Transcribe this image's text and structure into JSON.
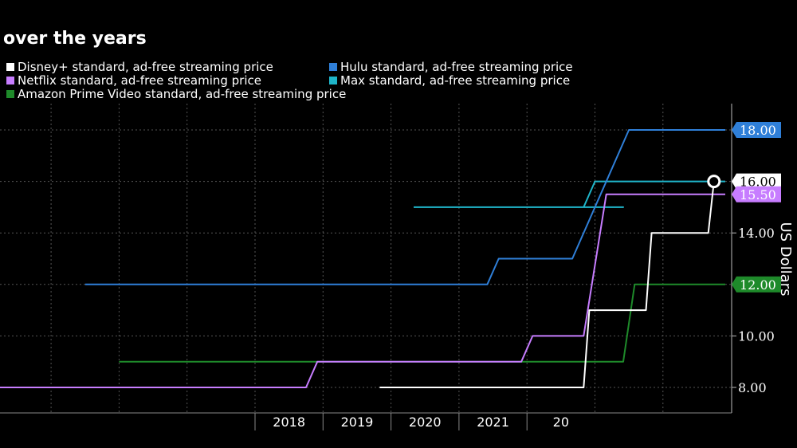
{
  "title": "over the years",
  "chart_data": {
    "type": "line",
    "ylabel": "US Dollars",
    "ylim": [
      7,
      19
    ],
    "y_ticks": [
      8,
      10,
      12,
      14,
      16,
      18
    ],
    "x_ticks": [
      "2018",
      "2019",
      "2020",
      "2021",
      "20"
    ],
    "grid": true,
    "legend_position": "top",
    "series": [
      {
        "name": "Disney+ standard, ad-free streaming price",
        "color": "#ffffff",
        "points": [
          [
            "2019-11",
            8.0
          ],
          [
            "2022-11",
            8.0
          ],
          [
            "2022-12",
            11.0
          ],
          [
            "2023-10",
            11.0
          ],
          [
            "2023-11",
            14.0
          ],
          [
            "2024-09",
            14.0
          ],
          [
            "2024-10",
            16.0
          ]
        ],
        "end_label": "16.00"
      },
      {
        "name": "Hulu standard, ad-free streaming price",
        "color": "#2f7fd8",
        "points": [
          [
            "2015-07",
            12.0
          ],
          [
            "2021-06",
            12.0
          ],
          [
            "2021-08",
            13.0
          ],
          [
            "2022-09",
            13.0
          ],
          [
            "2023-07",
            18.0
          ],
          [
            "2024-12",
            18.0
          ]
        ],
        "end_label": "18.00"
      },
      {
        "name": "Netflix standard, ad-free streaming price",
        "color": "#c77dff",
        "points": [
          [
            "2014-01",
            8.0
          ],
          [
            "2018-10",
            8.0
          ],
          [
            "2018-12",
            9.0
          ],
          [
            "2021-12",
            9.0
          ],
          [
            "2022-02",
            10.0
          ],
          [
            "2022-11",
            10.0
          ],
          [
            "2023-03",
            15.5
          ],
          [
            "2024-12",
            15.5
          ]
        ],
        "end_label": "15.50"
      },
      {
        "name": "Max standard, ad-free streaming price",
        "color": "#1fb5c9",
        "points": [
          [
            "2020-05",
            15.0
          ],
          [
            "2023-06",
            15.0
          ],
          [
            "2022-11",
            15.0
          ],
          [
            "2023-01",
            16.0
          ],
          [
            "2024-12",
            16.0
          ]
        ],
        "end_label": ""
      },
      {
        "name": "Amazon Prime Video standard, ad-free streaming price",
        "color": "#1e8a2a",
        "points": [
          [
            "2016-01",
            9.0
          ],
          [
            "2023-06",
            9.0
          ],
          [
            "2023-08",
            12.0
          ],
          [
            "2024-12",
            12.0
          ]
        ],
        "end_label": "12.00"
      }
    ]
  }
}
